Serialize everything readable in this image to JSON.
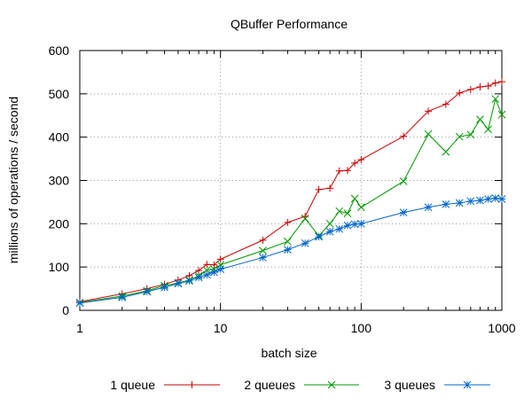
{
  "chart_data": {
    "type": "line",
    "title": "QBuffer Performance",
    "xlabel": "batch size",
    "ylabel": "millions of operations / second",
    "xscale": "log",
    "xlim": [
      1,
      1000
    ],
    "ylim": [
      0,
      600
    ],
    "xticks": [
      1,
      10,
      100,
      1000
    ],
    "xtick_labels": [
      "1",
      "10",
      "100",
      "1000"
    ],
    "yticks": [
      0,
      100,
      200,
      300,
      400,
      500,
      600
    ],
    "ytick_labels": [
      "0",
      "100",
      "200",
      "300",
      "400",
      "500",
      "600"
    ],
    "grid": true,
    "legend_position": "bottom",
    "colors": {
      "series_1": "#cc0000",
      "series_2": "#009900",
      "series_3": "#0066cc"
    },
    "series": [
      {
        "name": "1 queue",
        "marker": "plus",
        "x": [
          1,
          2,
          3,
          4,
          5,
          6,
          7,
          8,
          9,
          10,
          20,
          30,
          40,
          50,
          60,
          70,
          80,
          90,
          100,
          200,
          300,
          400,
          500,
          600,
          700,
          800,
          900,
          1000
        ],
        "y": [
          20,
          38,
          50,
          60,
          70,
          80,
          92,
          106,
          105,
          118,
          162,
          203,
          217,
          279,
          282,
          322,
          323,
          340,
          348,
          402,
          460,
          476,
          502,
          510,
          516,
          518,
          525,
          528
        ]
      },
      {
        "name": "2 queues",
        "marker": "cross",
        "x": [
          1,
          2,
          3,
          4,
          5,
          6,
          7,
          8,
          9,
          10,
          20,
          30,
          40,
          50,
          60,
          70,
          80,
          90,
          100,
          200,
          300,
          400,
          500,
          600,
          700,
          800,
          900,
          1000
        ],
        "y": [
          18,
          33,
          45,
          57,
          63,
          70,
          80,
          93,
          95,
          105,
          138,
          159,
          212,
          172,
          200,
          229,
          224,
          258,
          238,
          298,
          407,
          366,
          401,
          406,
          441,
          418,
          488,
          452
        ]
      },
      {
        "name": "3 queues",
        "marker": "asterisk",
        "x": [
          1,
          2,
          3,
          4,
          5,
          6,
          7,
          8,
          9,
          10,
          20,
          30,
          40,
          50,
          60,
          70,
          80,
          90,
          100,
          200,
          300,
          400,
          500,
          600,
          700,
          800,
          900,
          1000
        ],
        "y": [
          17,
          30,
          43,
          53,
          62,
          68,
          76,
          82,
          88,
          95,
          122,
          140,
          155,
          170,
          182,
          188,
          196,
          199,
          200,
          226,
          238,
          245,
          248,
          252,
          254,
          257,
          259,
          257
        ]
      }
    ]
  }
}
